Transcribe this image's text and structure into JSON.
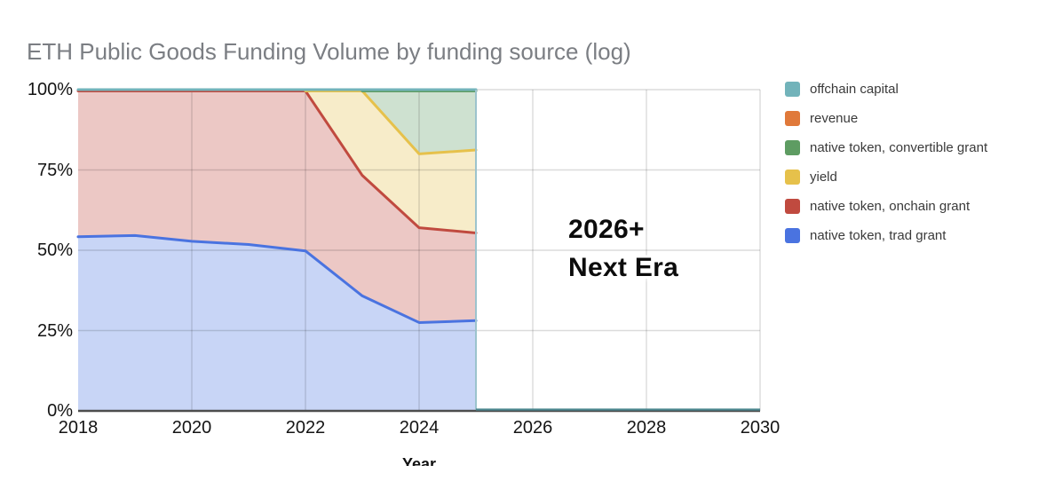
{
  "title": {
    "text": "ETH Public Goods Funding Volume by funding source (log)",
    "color": "#7b7e83"
  },
  "annotation": {
    "line1": "2026+",
    "line2": "Next Era"
  },
  "legend": {
    "items": [
      {
        "label": "offchain capital",
        "color": "#72b3ba"
      },
      {
        "label": "revenue",
        "color": "#e0793a"
      },
      {
        "label": "native token, convertible grant",
        "color": "#5e9c62"
      },
      {
        "label": "yield",
        "color": "#e6c14b"
      },
      {
        "label": "native token, onchain grant",
        "color": "#c04a3f"
      },
      {
        "label": "native token, trad grant",
        "color": "#4a73e0"
      }
    ]
  },
  "chart_data": {
    "type": "area",
    "stacked": true,
    "units": "percent share of funding volume",
    "title": "ETH Public Goods Funding Volume by funding source (log)",
    "xlabel": "Year",
    "ylabel": "",
    "grid": true,
    "legend_position": "right",
    "xlim": [
      2018,
      2030
    ],
    "ylim_percent": [
      0,
      100
    ],
    "x": [
      2018,
      2019,
      2020,
      2021,
      2022,
      2023,
      2024,
      2025
    ],
    "x_ticks": [
      {
        "v": 2018,
        "label": "2018"
      },
      {
        "v": 2020,
        "label": "2020"
      },
      {
        "v": 2022,
        "label": "2022"
      },
      {
        "v": 2024,
        "label": "2024"
      },
      {
        "v": 2026,
        "label": "2026"
      },
      {
        "v": 2028,
        "label": "2028"
      },
      {
        "v": 2030,
        "label": "2030"
      }
    ],
    "y_ticks": [
      {
        "v": 0,
        "label": "0%"
      },
      {
        "v": 25,
        "label": "25%"
      },
      {
        "v": 50,
        "label": "50%"
      },
      {
        "v": 75,
        "label": "75%"
      },
      {
        "v": 100,
        "label": "100%"
      }
    ],
    "series": [
      {
        "name": "native token, trad grant",
        "color": "#4a73e0",
        "values": [
          54.2,
          54.6,
          52.8,
          51.8,
          49.8,
          35.8,
          27.5,
          28.1
        ]
      },
      {
        "name": "native token, onchain grant",
        "color": "#c04a3f",
        "values": [
          45.4,
          45.0,
          46.8,
          47.8,
          49.8,
          37.5,
          29.5,
          27.3
        ]
      },
      {
        "name": "yield",
        "color": "#e6c14b",
        "values": [
          0,
          0,
          0,
          0,
          0,
          26.3,
          23.0,
          25.8
        ]
      },
      {
        "name": "native token, convertible grant",
        "color": "#5e9c62",
        "values": [
          0,
          0,
          0,
          0,
          0,
          0,
          19.6,
          18.4
        ]
      },
      {
        "name": "revenue",
        "color": "#e0793a",
        "values": [
          0,
          0,
          0,
          0,
          0,
          0,
          0,
          0
        ]
      },
      {
        "name": "offchain capital",
        "color": "#72b3ba",
        "values": [
          0.4,
          0.4,
          0.4,
          0.4,
          0.4,
          0.4,
          0.4,
          0.4
        ]
      }
    ],
    "extension": {
      "note": "After 2025 the stacked area ends; a thin offchain-capital (teal) line runs along the 0% axis from 2025 to 2030, with a light vertical drop at 2025.",
      "series": "offchain capital",
      "x_range": [
        2025,
        2030
      ],
      "percent": 0
    },
    "annotation": {
      "text": [
        "2026+",
        "Next Era"
      ],
      "near_x": 2026.5,
      "near_y_percent": 52
    }
  }
}
